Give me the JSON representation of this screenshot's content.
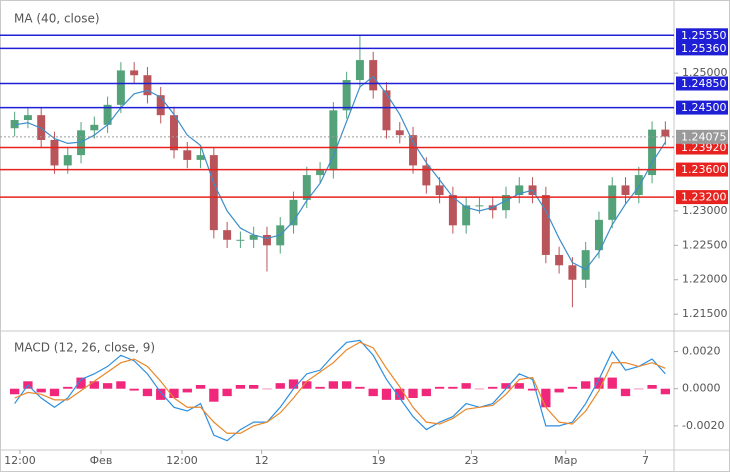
{
  "chart_data": [
    {
      "type": "candlestick",
      "title": "MA (40, close)",
      "xlim": [
        -0.5,
        49.5
      ],
      "ylim": [
        1.2127,
        1.2599
      ],
      "yticks": [
        {
          "value": 1.25,
          "label": "1.25000"
        },
        {
          "value": 1.23,
          "label": "1.23000"
        },
        {
          "value": 1.225,
          "label": "1.22500"
        },
        {
          "value": 1.22,
          "label": "1.22000"
        },
        {
          "value": 1.215,
          "label": "1.21500"
        }
      ],
      "up_color": "#53a27a",
      "down_color": "#b9555a",
      "open": [
        1.242,
        1.2432,
        1.2439,
        1.2403,
        1.2366,
        1.2381,
        1.2417,
        1.2425,
        1.2454,
        1.2504,
        1.2497,
        1.2468,
        1.2439,
        1.2388,
        1.2374,
        1.2381,
        1.2272,
        1.2258,
        1.2258,
        1.2265,
        1.225,
        1.2279,
        1.2316,
        1.2352,
        1.2359,
        1.2446,
        1.249,
        1.2519,
        1.2475,
        1.2417,
        1.241,
        1.2366,
        1.2337,
        1.2323,
        1.2279,
        1.2308,
        1.2308,
        1.2301,
        1.2323,
        1.2337,
        1.2323,
        1.2236,
        1.2221,
        1.22,
        1.2243,
        1.2287,
        1.2337,
        1.2323,
        1.2352,
        1.2418
      ],
      "high": [
        1.2444,
        1.2451,
        1.2451,
        1.2415,
        1.2393,
        1.2429,
        1.2437,
        1.2466,
        1.2516,
        1.2516,
        1.2509,
        1.248,
        1.2451,
        1.24,
        1.2393,
        1.2393,
        1.2284,
        1.227,
        1.2277,
        1.2277,
        1.2291,
        1.2328,
        1.2364,
        1.2371,
        1.2458,
        1.2502,
        1.2555,
        1.2531,
        1.2487,
        1.2429,
        1.2422,
        1.2378,
        1.2349,
        1.2335,
        1.232,
        1.232,
        1.232,
        1.2335,
        1.2349,
        1.2349,
        1.2335,
        1.2248,
        1.2233,
        1.2255,
        1.2299,
        1.2349,
        1.2349,
        1.2364,
        1.243,
        1.243
      ],
      "low": [
        1.2408,
        1.242,
        1.2391,
        1.2354,
        1.2354,
        1.2369,
        1.2405,
        1.2413,
        1.2442,
        1.2485,
        1.2456,
        1.2427,
        1.2376,
        1.2362,
        1.2362,
        1.226,
        1.2246,
        1.2246,
        1.2246,
        1.2212,
        1.2238,
        1.2267,
        1.2304,
        1.234,
        1.2347,
        1.2434,
        1.2478,
        1.2463,
        1.2405,
        1.2398,
        1.2354,
        1.2325,
        1.2311,
        1.2267,
        1.2267,
        1.2296,
        1.2289,
        1.2289,
        1.2311,
        1.2311,
        1.2224,
        1.2209,
        1.216,
        1.2188,
        1.2231,
        1.2275,
        1.2311,
        1.2311,
        1.234,
        1.2396
      ],
      "close": [
        1.2432,
        1.2439,
        1.2403,
        1.2366,
        1.2381,
        1.2417,
        1.2425,
        1.2454,
        1.2504,
        1.2497,
        1.2468,
        1.2439,
        1.2388,
        1.2374,
        1.2381,
        1.2272,
        1.2258,
        1.2258,
        1.2265,
        1.225,
        1.2279,
        1.2316,
        1.2352,
        1.2359,
        1.2446,
        1.249,
        1.2519,
        1.2475,
        1.2417,
        1.241,
        1.2366,
        1.2337,
        1.2323,
        1.2279,
        1.2308,
        1.2308,
        1.2301,
        1.2323,
        1.2337,
        1.2323,
        1.2236,
        1.2221,
        1.22,
        1.2243,
        1.2287,
        1.2337,
        1.2323,
        1.2352,
        1.2418,
        1.2408
      ],
      "ma": {
        "color": "#3d8ec9",
        "values": [
          1.2425,
          1.2428,
          1.242,
          1.2405,
          1.2398,
          1.24,
          1.241,
          1.2425,
          1.245,
          1.247,
          1.2475,
          1.2465,
          1.244,
          1.241,
          1.2395,
          1.234,
          1.23,
          1.2275,
          1.2265,
          1.226,
          1.2265,
          1.2285,
          1.2315,
          1.234,
          1.238,
          1.243,
          1.248,
          1.2495,
          1.247,
          1.244,
          1.24,
          1.237,
          1.2345,
          1.232,
          1.2305,
          1.23,
          1.2305,
          1.2315,
          1.2325,
          1.233,
          1.23,
          1.226,
          1.2225,
          1.2215,
          1.224,
          1.228,
          1.231,
          1.2335,
          1.237,
          1.24
        ]
      },
      "levels": [
        {
          "value": 1.2555,
          "label": "1.25550",
          "color": "#1f1fd6"
        },
        {
          "value": 1.2536,
          "label": "1.25360",
          "color": "#1f1fd6"
        },
        {
          "value": 1.2485,
          "label": "1.24850",
          "color": "#1f1fd6"
        },
        {
          "value": 1.245,
          "label": "1.24500",
          "color": "#1f1fd6"
        },
        {
          "value": 1.2392,
          "label": "1.23920",
          "color": "#e8221e"
        },
        {
          "value": 1.236,
          "label": "1.23600",
          "color": "#e8221e"
        },
        {
          "value": 1.232,
          "label": "1.23200",
          "color": "#e8221e"
        }
      ],
      "current_price": {
        "value": 1.24075,
        "label": "1.24075",
        "color": "#9a9a9a"
      }
    },
    {
      "type": "macd",
      "title": "MACD (12, 26, close, 9)",
      "xlim": [
        -0.5,
        49.5
      ],
      "ylim": [
        -0.0033,
        0.003
      ],
      "yticks": [
        {
          "value": 0.002,
          "label": "0.0020"
        },
        {
          "value": 0,
          "label": "0.0000"
        },
        {
          "value": -0.002,
          "label": "-0.0020"
        }
      ],
      "xticks": [
        {
          "value": 0.4,
          "label": "12:00"
        },
        {
          "value": 6.5,
          "label": "Фев"
        },
        {
          "value": 12.6,
          "label": "12:00"
        },
        {
          "value": 18.6,
          "label": "12"
        },
        {
          "value": 27.4,
          "label": "19"
        },
        {
          "value": 34.4,
          "label": "23"
        },
        {
          "value": 41.5,
          "label": "Мар"
        },
        {
          "value": 47.5,
          "label": "7"
        }
      ],
      "series": [
        {
          "name": "MACD",
          "color": "#2e8fe0",
          "values": [
            -0.0008,
            0.0002,
            -0.0005,
            -0.001,
            -0.0005,
            0.0005,
            0.0008,
            0.0012,
            0.0018,
            0.0015,
            0.0008,
            -0.0002,
            -0.001,
            -0.0012,
            -0.0008,
            -0.0025,
            -0.0028,
            -0.0022,
            -0.0018,
            -0.0018,
            -0.001,
            0.0,
            0.0008,
            0.001,
            0.0018,
            0.0025,
            0.0026,
            0.0018,
            0.0005,
            -0.0005,
            -0.0015,
            -0.0022,
            -0.0018,
            -0.0015,
            -0.0008,
            -0.001,
            -0.0008,
            0.0,
            0.0008,
            0.0005,
            -0.002,
            -0.002,
            -0.0018,
            -0.0008,
            0.0005,
            0.002,
            0.001,
            0.0012,
            0.0016,
            0.0008
          ]
        },
        {
          "name": "Signal",
          "color": "#e8872b",
          "values": [
            -0.0005,
            -0.0002,
            -0.0003,
            -0.0006,
            -0.0006,
            -0.0001,
            0.0004,
            0.0009,
            0.0014,
            0.0016,
            0.0012,
            0.0004,
            -0.0005,
            -0.001,
            -0.001,
            -0.0018,
            -0.0024,
            -0.0024,
            -0.002,
            -0.0018,
            -0.0013,
            -0.0005,
            0.0004,
            0.0009,
            0.0014,
            0.0021,
            0.0025,
            0.0022,
            0.0011,
            0.0001,
            -0.001,
            -0.0018,
            -0.0019,
            -0.0016,
            -0.0011,
            -0.001,
            -0.0009,
            -0.0003,
            0.0005,
            0.0006,
            -0.001,
            -0.0018,
            -0.0019,
            -0.0012,
            -0.0001,
            0.0014,
            0.0014,
            0.0012,
            0.0014,
            0.0011
          ]
        }
      ],
      "histogram": {
        "color": "#f0277a",
        "values": [
          -0.0003,
          0.0004,
          -0.0002,
          -0.0004,
          0.0001,
          0.0006,
          0.0004,
          0.0003,
          0.0004,
          -0.0001,
          -0.0004,
          -0.0006,
          -0.0005,
          -0.0002,
          0.0002,
          -0.0007,
          -0.0004,
          0.0002,
          0.0002,
          0.0,
          0.0003,
          0.0005,
          0.0004,
          0.0001,
          0.0004,
          0.0004,
          0.0001,
          -0.0004,
          -0.0006,
          -0.0006,
          -0.0005,
          -0.0004,
          0.0001,
          0.0001,
          0.0003,
          0.0,
          0.0001,
          0.0003,
          0.0003,
          -0.0001,
          -0.001,
          -0.0002,
          0.0001,
          0.0004,
          0.0006,
          0.0006,
          -0.0004,
          0.0,
          0.0002,
          -0.0003
        ]
      }
    }
  ]
}
